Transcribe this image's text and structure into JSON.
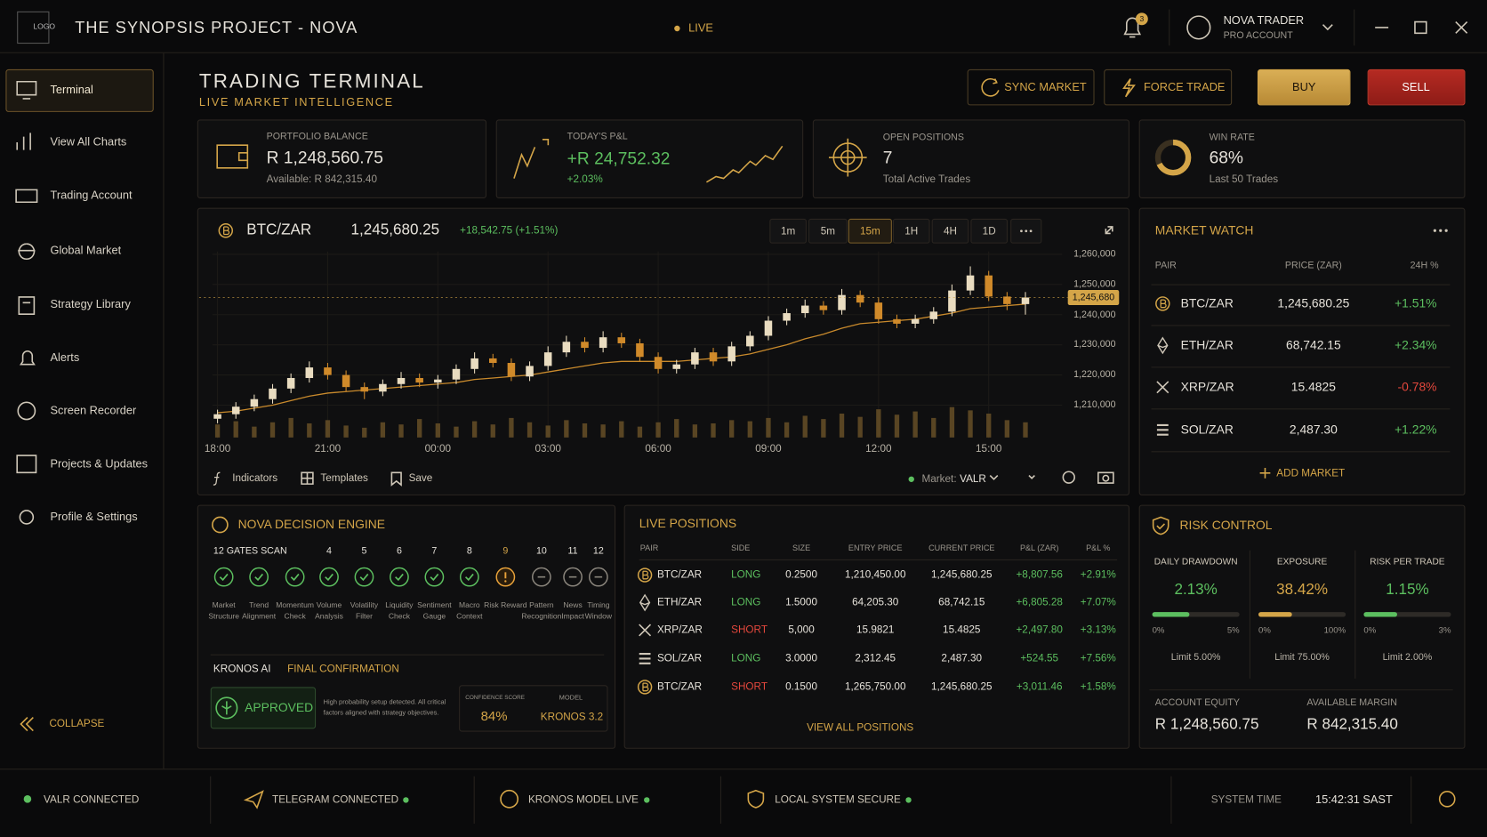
{
  "header": {
    "logo": "LOGO",
    "title": "THE SYNOPSIS PROJECT - NOVA",
    "status": "LIVE",
    "notifications": 3,
    "user_name": "NOVA TRADER",
    "user_role": "PRO ACCOUNT"
  },
  "sidebar": {
    "items": [
      "Terminal",
      "View All Charts",
      "Trading Account",
      "Global Market",
      "Strategy Library",
      "Alerts",
      "Screen Recorder",
      "Projects & Updates",
      "Profile & Settings"
    ],
    "active": 0,
    "collapse": "COLLAPSE"
  },
  "page": {
    "title": "TRADING TERMINAL",
    "subtitle": "LIVE MARKET INTELLIGENCE",
    "buttons": [
      "SYNC MARKET",
      "FORCE TRADE",
      "BUY",
      "SELL"
    ]
  },
  "stats": [
    {
      "label": "PORTFOLIO BALANCE",
      "value": "R 1,248,560.75",
      "sub": "Available: R 842,315.40"
    },
    {
      "label": "TODAY'S P&L",
      "value": "+R 24,752.32",
      "sub": "+2.03%"
    },
    {
      "label": "OPEN POSITIONS",
      "value": "7",
      "sub": "Total Active Trades"
    },
    {
      "label": "WIN RATE",
      "value": 68,
      "value_label": "68%",
      "sub": "Last 50 Trades"
    }
  ],
  "chart_panel": {
    "pair": "BTC/ZAR",
    "price": "1,245,680.25",
    "change": "+18,542.75 (+1.51%)",
    "timeframes": [
      "1m",
      "5m",
      "15m",
      "1H",
      "4H",
      "1D"
    ],
    "active_timeframe": 2,
    "tools": [
      "Indicators",
      "Templates",
      "Save"
    ],
    "market_label": "Market:",
    "market": "VALR"
  },
  "chart_data": {
    "type": "candlestick",
    "colors": {
      "up": "#e9dcc0",
      "down": "#d08a2a",
      "ma": "#c98a2c",
      "volume": "#6b5228"
    },
    "x": [
      0,
      0.5,
      1,
      1.5,
      2,
      2.5,
      3,
      3.5,
      4,
      4.5,
      5,
      5.5,
      6,
      6.5,
      7,
      7.5,
      8,
      8.5,
      9,
      9.5,
      10,
      10.5,
      11,
      11.5,
      12,
      12.5,
      13,
      13.5,
      14,
      14.5,
      15,
      15.5,
      16,
      16.5,
      17,
      17.5,
      18,
      18.5,
      19,
      19.5,
      20,
      20.5,
      21,
      21.5,
      22
    ],
    "candles": [
      [
        1205500,
        1208500,
        1204000,
        1207000
      ],
      [
        1207000,
        1211000,
        1205500,
        1209500
      ],
      [
        1209500,
        1213500,
        1208000,
        1212000
      ],
      [
        1212000,
        1217000,
        1210500,
        1215500
      ],
      [
        1215500,
        1220500,
        1214000,
        1219000
      ],
      [
        1219000,
        1224500,
        1217500,
        1222500
      ],
      [
        1222500,
        1224000,
        1218500,
        1220000
      ],
      [
        1220000,
        1221500,
        1214500,
        1216000
      ],
      [
        1216000,
        1217500,
        1212000,
        1214500
      ],
      [
        1214500,
        1218500,
        1213000,
        1217000
      ],
      [
        1217000,
        1221000,
        1215500,
        1219000
      ],
      [
        1219000,
        1220500,
        1216000,
        1217500
      ],
      [
        1217500,
        1220000,
        1215500,
        1218500
      ],
      [
        1218500,
        1223500,
        1217000,
        1222000
      ],
      [
        1222000,
        1227500,
        1220500,
        1225500
      ],
      [
        1225500,
        1227000,
        1222500,
        1224000
      ],
      [
        1224000,
        1225500,
        1218000,
        1219500
      ],
      [
        1219500,
        1224500,
        1218000,
        1223000
      ],
      [
        1223000,
        1229500,
        1221500,
        1227500
      ],
      [
        1227500,
        1233000,
        1226000,
        1231000
      ],
      [
        1231000,
        1232500,
        1227500,
        1229000
      ],
      [
        1229000,
        1234500,
        1227500,
        1232500
      ],
      [
        1232500,
        1234000,
        1229000,
        1230500
      ],
      [
        1230500,
        1232000,
        1224500,
        1226000
      ],
      [
        1226000,
        1227500,
        1220500,
        1222000
      ],
      [
        1222000,
        1225000,
        1220500,
        1223500
      ],
      [
        1223500,
        1229000,
        1222000,
        1227500
      ],
      [
        1227500,
        1229000,
        1223000,
        1224500
      ],
      [
        1224500,
        1231000,
        1223000,
        1229500
      ],
      [
        1229500,
        1234500,
        1228000,
        1233000
      ],
      [
        1233000,
        1239500,
        1231500,
        1238000
      ],
      [
        1238000,
        1242000,
        1236500,
        1240500
      ],
      [
        1240500,
        1245000,
        1239000,
        1243000
      ],
      [
        1243000,
        1244500,
        1240000,
        1241500
      ],
      [
        1241500,
        1248500,
        1240000,
        1246500
      ],
      [
        1246500,
        1248000,
        1242500,
        1244000
      ],
      [
        1244000,
        1245500,
        1237000,
        1238500
      ],
      [
        1238500,
        1240000,
        1235500,
        1237000
      ],
      [
        1237000,
        1240000,
        1235500,
        1238500
      ],
      [
        1238500,
        1242500,
        1237000,
        1241000
      ],
      [
        1241000,
        1250000,
        1239500,
        1248000
      ],
      [
        1248000,
        1256000,
        1246500,
        1253000
      ],
      [
        1253000,
        1254500,
        1244500,
        1246000
      ],
      [
        1246000,
        1247500,
        1241500,
        1243500
      ],
      [
        1243500,
        1247500,
        1240000,
        1245680
      ]
    ],
    "ma": [
      1207500,
      1208000,
      1209000,
      1210000,
      1211500,
      1213000,
      1214000,
      1214500,
      1215000,
      1215500,
      1216000,
      1216500,
      1217000,
      1217500,
      1218500,
      1219000,
      1219500,
      1220000,
      1221000,
      1222000,
      1223000,
      1224000,
      1224500,
      1224500,
      1224500,
      1224500,
      1225000,
      1225500,
      1226000,
      1227000,
      1228500,
      1230000,
      1232000,
      1233500,
      1235500,
      1237000,
      1237500,
      1238000,
      1238500,
      1239500,
      1240500,
      1242000,
      1242500,
      1243000,
      1243500
    ],
    "volume": [
      12,
      15,
      10,
      14,
      18,
      13,
      16,
      11,
      9,
      14,
      12,
      17,
      13,
      10,
      15,
      12,
      18,
      14,
      11,
      16,
      13,
      12,
      15,
      10,
      14,
      17,
      12,
      13,
      16,
      15,
      18,
      14,
      20,
      17,
      22,
      19,
      26,
      21,
      24,
      18,
      28,
      25,
      22,
      16,
      14
    ],
    "xlim": [
      -0.5,
      23
    ],
    "ylim": [
      1203000,
      1261000
    ],
    "yticks": [
      {
        "value": 1210000,
        "label": "1,210,000"
      },
      {
        "value": 1220000,
        "label": "1,220,000"
      },
      {
        "value": 1230000,
        "label": "1,230,000"
      },
      {
        "value": 1240000,
        "label": "1,240,000"
      },
      {
        "value": 1250000,
        "label": "1,250,000"
      },
      {
        "value": 1260000,
        "label": "1,260,000"
      }
    ],
    "xticks": [
      {
        "value": 0,
        "label": "18:00"
      },
      {
        "value": 3,
        "label": "21:00"
      },
      {
        "value": 6,
        "label": "00:00"
      },
      {
        "value": 9,
        "label": "03:00"
      },
      {
        "value": 12,
        "label": "06:00"
      },
      {
        "value": 15,
        "label": "09:00"
      },
      {
        "value": 18,
        "label": "12:00"
      },
      {
        "value": 21,
        "label": "15:00"
      }
    ],
    "last_price": {
      "value": 1245680,
      "label": "1,245,680"
    },
    "grid": true
  },
  "market_watch": {
    "title": "MARKET WATCH",
    "columns": [
      "PAIR",
      "PRICE (ZAR)",
      "24H %"
    ],
    "rows": [
      {
        "icon": "btc",
        "pair": "BTC/ZAR",
        "price": "1,245,680.25",
        "change": "+1.51%"
      },
      {
        "icon": "eth",
        "pair": "ETH/ZAR",
        "price": "68,742.15",
        "change": "+2.34%"
      },
      {
        "icon": "xrp",
        "pair": "XRP/ZAR",
        "price": "15.4825",
        "change": "-0.78%"
      },
      {
        "icon": "sol",
        "pair": "SOL/ZAR",
        "price": "2,487.30",
        "change": "+1.22%"
      }
    ],
    "add": "ADD MARKET"
  },
  "decision_engine": {
    "title": "NOVA DECISION ENGINE",
    "scan": "12 GATES SCAN",
    "gates": [
      {
        "number": null,
        "label": "Market Structure",
        "status": "pass"
      },
      {
        "number": null,
        "label": "Trend Alignment",
        "status": "pass"
      },
      {
        "number": null,
        "label": "Momentum Check",
        "status": "pass"
      },
      {
        "number": 4,
        "label": "Volume Analysis",
        "status": "pass"
      },
      {
        "number": 5,
        "label": "Volatility Filter",
        "status": "pass"
      },
      {
        "number": 6,
        "label": "Liquidity Check",
        "status": "pass"
      },
      {
        "number": 7,
        "label": "Sentiment Gauge",
        "status": "pass"
      },
      {
        "number": 8,
        "label": "Macro Context",
        "status": "pass"
      },
      {
        "number": 9,
        "label": "Risk Reward",
        "status": "warn"
      },
      {
        "number": 10,
        "label": "Pattern Recognition",
        "status": "pending"
      },
      {
        "number": 11,
        "label": "News Impact",
        "status": "pending"
      },
      {
        "number": 12,
        "label": "Timing Window",
        "status": "pending"
      }
    ],
    "ai_title": "KRONOS AI",
    "ai_subtitle": "FINAL CONFIRMATION",
    "verdict": "APPROVED",
    "message": "High probability setup detected. All critical factors aligned with strategy objectives.",
    "confidence_label": "CONFIDENCE SCORE",
    "confidence": "84%",
    "model_label": "MODEL",
    "model": "KRONOS 3.2"
  },
  "positions": {
    "title": "LIVE POSITIONS",
    "columns": [
      "PAIR",
      "SIDE",
      "SIZE",
      "ENTRY PRICE",
      "CURRENT PRICE",
      "P&L (ZAR)",
      "P&L %"
    ],
    "rows": [
      {
        "icon": "btc",
        "cells": [
          "BTC/ZAR",
          "LONG",
          "0.2500",
          "1,210,450.00",
          "1,245,680.25",
          "+8,807.56",
          "+2.91%"
        ]
      },
      {
        "icon": "eth",
        "cells": [
          "ETH/ZAR",
          "LONG",
          "1.5000",
          "64,205.30",
          "68,742.15",
          "+6,805.28",
          "+7.07%"
        ]
      },
      {
        "icon": "xrp",
        "cells": [
          "XRP/ZAR",
          "SHORT",
          "5,000",
          "15.9821",
          "15.4825",
          "+2,497.80",
          "+3.13%"
        ]
      },
      {
        "icon": "sol",
        "cells": [
          "SOL/ZAR",
          "LONG",
          "3.0000",
          "2,312.45",
          "2,487.30",
          "+524.55",
          "+7.56%"
        ]
      },
      {
        "icon": "btc",
        "cells": [
          "BTC/ZAR",
          "SHORT",
          "0.1500",
          "1,265,750.00",
          "1,245,680.25",
          "+3,011.46",
          "+1.58%"
        ]
      }
    ],
    "view_all": "VIEW ALL POSITIONS"
  },
  "risk": {
    "title": "RISK CONTROL",
    "metrics": [
      {
        "label": "DAILY DRAWDOWN",
        "value": 2.13,
        "value_label": "2.13%",
        "ticks": [
          {
            "value": 0,
            "label": "0%"
          },
          {
            "value": 5,
            "label": "5%"
          }
        ],
        "limit": "Limit 5.00%",
        "color": "#5cbf5f"
      },
      {
        "label": "EXPOSURE",
        "value": 38.42,
        "value_label": "38.42%",
        "ticks": [
          {
            "value": 0,
            "label": "0%"
          },
          {
            "value": 100,
            "label": "100%"
          }
        ],
        "limit": "Limit 75.00%",
        "color": "#d4a548"
      },
      {
        "label": "RISK PER TRADE",
        "value": 1.15,
        "value_label": "1.15%",
        "ticks": [
          {
            "value": 0,
            "label": "0%"
          },
          {
            "value": 3,
            "label": "3%"
          }
        ],
        "limit": "Limit 2.00%",
        "color": "#5cbf5f"
      }
    ],
    "equity_label": "ACCOUNT EQUITY",
    "equity": "R 1,248,560.75",
    "margin_label": "AVAILABLE MARGIN",
    "margin": "R 842,315.40"
  },
  "footer": {
    "statuses": [
      "VALR CONNECTED",
      "TELEGRAM CONNECTED",
      "KRONOS MODEL LIVE",
      "LOCAL SYSTEM SECURE"
    ],
    "time_label": "SYSTEM TIME",
    "time": "15:42:31 SAST"
  }
}
